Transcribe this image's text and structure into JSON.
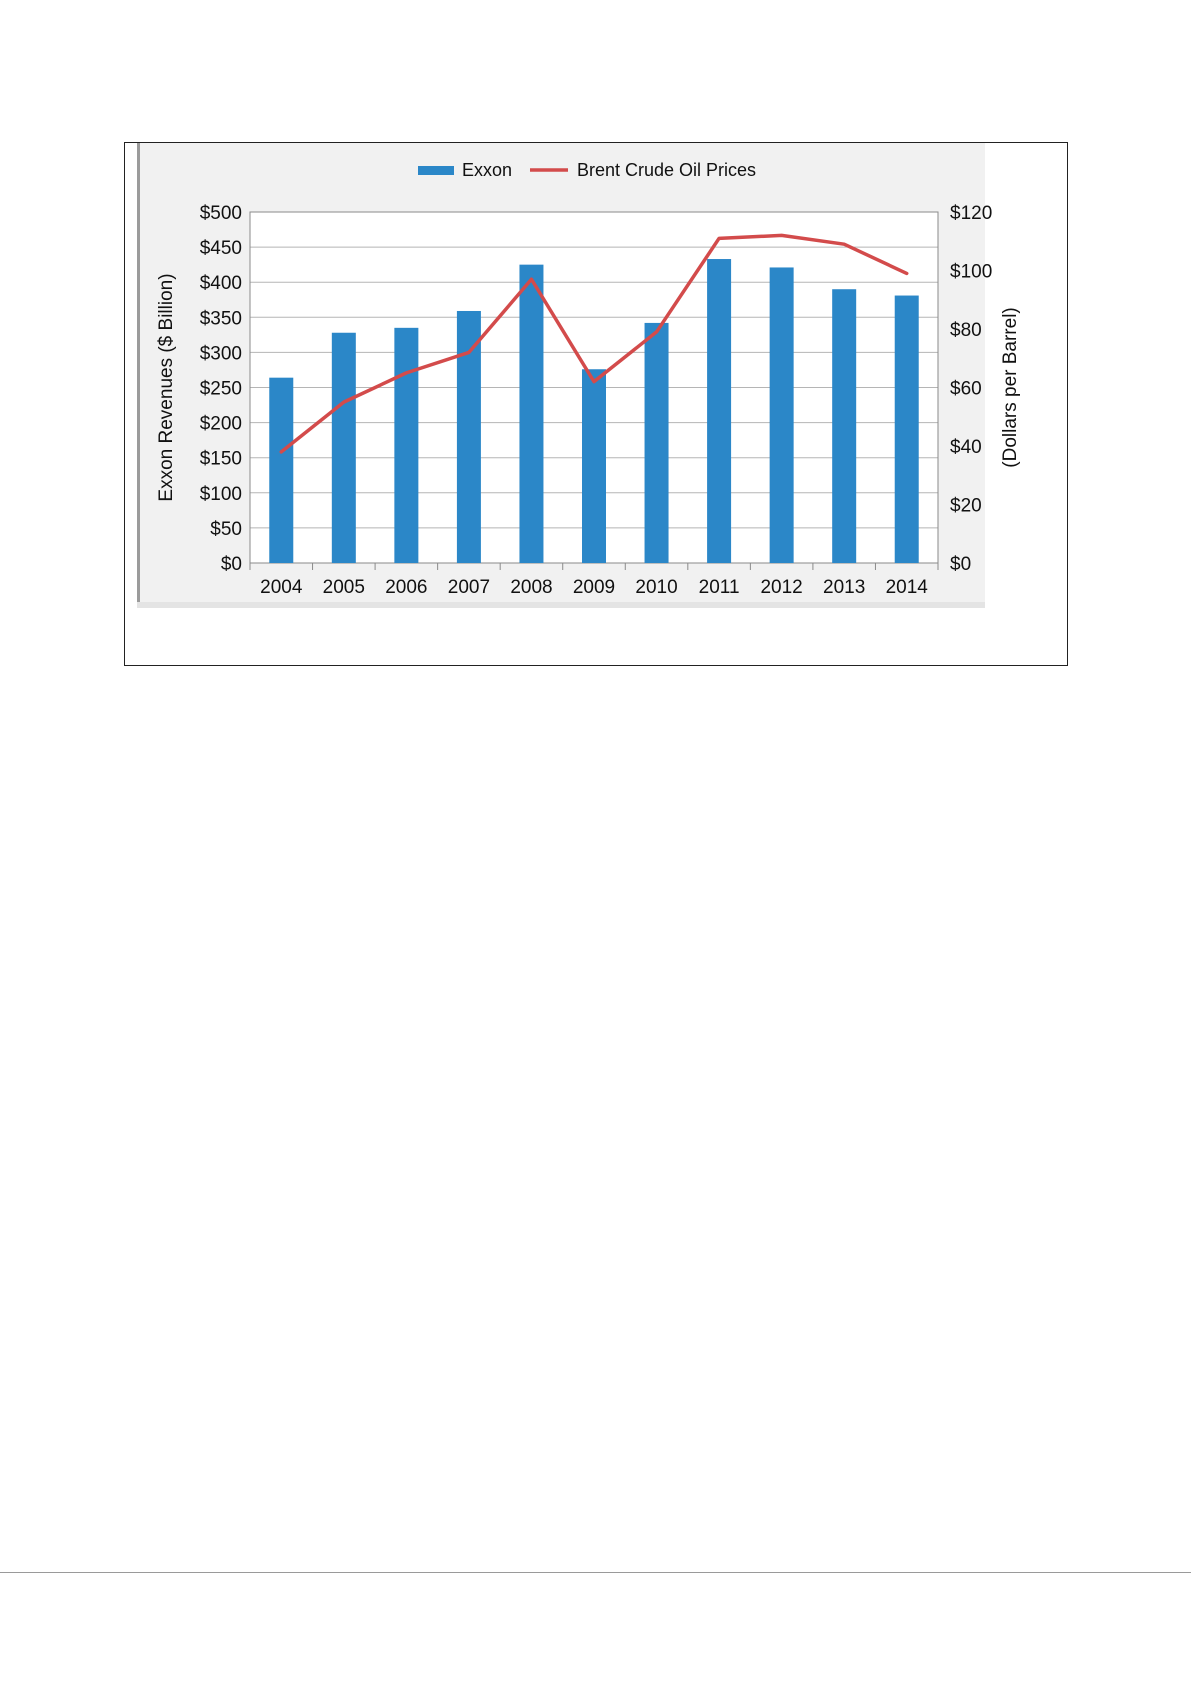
{
  "chart_data": {
    "type": "bar",
    "categories": [
      "2004",
      "2005",
      "2006",
      "2007",
      "2008",
      "2009",
      "2010",
      "2011",
      "2012",
      "2013",
      "2014"
    ],
    "series": [
      {
        "name": "Exxon",
        "type": "bar",
        "axis": "left",
        "values": [
          264,
          328,
          335,
          359,
          425,
          276,
          342,
          433,
          421,
          390,
          381
        ],
        "color": "#2b87c8"
      },
      {
        "name": "Brent Crude Oil Prices",
        "type": "line",
        "axis": "right",
        "values": [
          38,
          55,
          65,
          72,
          97,
          62,
          79,
          111,
          112,
          109,
          99
        ],
        "color": "#d34b4b"
      }
    ],
    "ylabel": "Exxon Revenues ($ Billion)",
    "ylabel_right": "(Dollars per Barrel)",
    "ylim": [
      0,
      500
    ],
    "ylim_right": [
      0,
      120
    ],
    "yticks": [
      "$0",
      "$50",
      "$100",
      "$150",
      "$200",
      "$250",
      "$300",
      "$350",
      "$400",
      "$450",
      "$500"
    ],
    "yticks_right": [
      "$0",
      "$20",
      "$40",
      "$60",
      "$80",
      "$100",
      "$120"
    ],
    "grid": true,
    "legend_position": "top-center",
    "plot_background": "#f1f1f1"
  }
}
